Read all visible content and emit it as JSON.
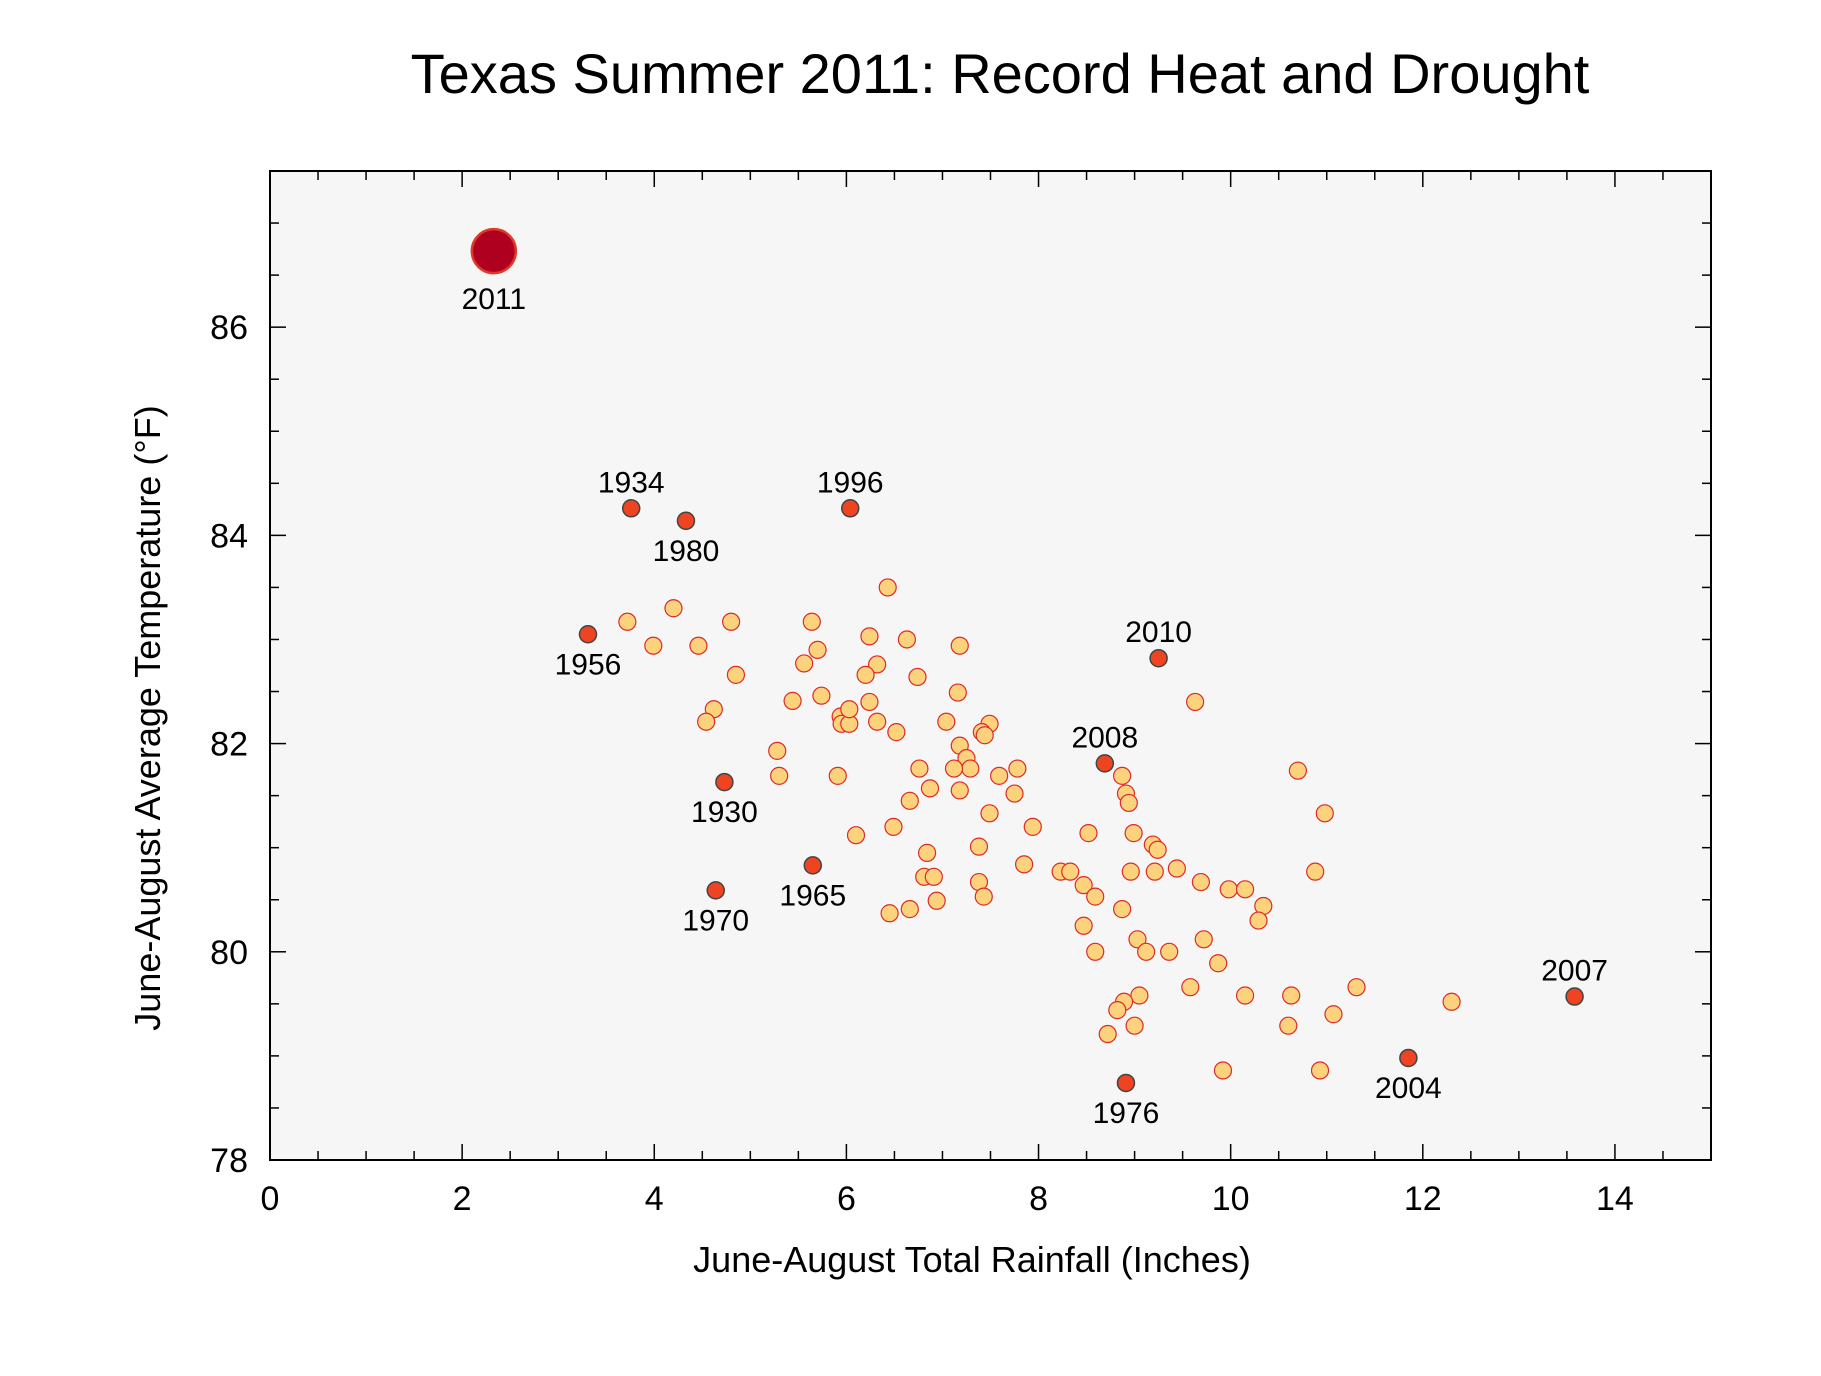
{
  "chart_data": {
    "type": "scatter",
    "title": "Texas Summer 2011:  Record Heat and Drought",
    "xlabel": "June-August Total Rainfall (Inches)",
    "ylabel": "June-August Average Temperature (°F)",
    "xlim": [
      0,
      15
    ],
    "ylim": [
      78,
      87.5
    ],
    "x_ticks": [
      0,
      2,
      4,
      6,
      8,
      10,
      12,
      14
    ],
    "x_tick_labels": [
      "0",
      "2",
      "4",
      "6",
      "8",
      "10",
      "12",
      "14"
    ],
    "y_ticks": [
      78,
      80,
      82,
      84,
      86
    ],
    "y_tick_labels": [
      "78",
      "80",
      "82",
      "84",
      "86"
    ],
    "grid": false,
    "legend": "none",
    "colors": {
      "plot_background": "#f6f6f6",
      "ordinary_fill": "#fdd27c",
      "ordinary_stroke": "#dd2a2a",
      "highlight_fill": "#ee4422",
      "highlight_stroke": "#444444",
      "record_fill": "#b00020",
      "record_stroke": "#e03a2a"
    },
    "highlighted_points": [
      {
        "label": "2011",
        "x": 2.33,
        "y": 86.73,
        "label_pos": "below",
        "record": true
      },
      {
        "label": "1934",
        "x": 3.76,
        "y": 84.26,
        "label_pos": "above"
      },
      {
        "label": "1980",
        "x": 4.33,
        "y": 84.14,
        "label_pos": "below"
      },
      {
        "label": "1996",
        "x": 6.04,
        "y": 84.26,
        "label_pos": "above"
      },
      {
        "label": "1956",
        "x": 3.31,
        "y": 83.05,
        "label_pos": "below"
      },
      {
        "label": "2010",
        "x": 9.25,
        "y": 82.82,
        "label_pos": "above"
      },
      {
        "label": "2008",
        "x": 8.69,
        "y": 81.81,
        "label_pos": "above"
      },
      {
        "label": "1930",
        "x": 4.73,
        "y": 81.63,
        "label_pos": "below"
      },
      {
        "label": "1965",
        "x": 5.65,
        "y": 80.83,
        "label_pos": "below"
      },
      {
        "label": "1970",
        "x": 4.64,
        "y": 80.59,
        "label_pos": "below"
      },
      {
        "label": "2007",
        "x": 13.58,
        "y": 79.57,
        "label_pos": "above"
      },
      {
        "label": "2004",
        "x": 11.85,
        "y": 78.98,
        "label_pos": "below"
      },
      {
        "label": "1976",
        "x": 8.91,
        "y": 78.74,
        "label_pos": "below"
      }
    ],
    "other_points": [
      {
        "x": 3.72,
        "y": 83.17
      },
      {
        "x": 3.99,
        "y": 82.94
      },
      {
        "x": 4.2,
        "y": 83.3
      },
      {
        "x": 4.46,
        "y": 82.94
      },
      {
        "x": 4.8,
        "y": 83.17
      },
      {
        "x": 4.85,
        "y": 82.66
      },
      {
        "x": 4.62,
        "y": 82.33
      },
      {
        "x": 4.54,
        "y": 82.21
      },
      {
        "x": 5.64,
        "y": 83.17
      },
      {
        "x": 5.7,
        "y": 82.9
      },
      {
        "x": 5.56,
        "y": 82.77
      },
      {
        "x": 5.44,
        "y": 82.41
      },
      {
        "x": 5.74,
        "y": 82.46
      },
      {
        "x": 5.28,
        "y": 81.93
      },
      {
        "x": 5.3,
        "y": 81.69
      },
      {
        "x": 5.94,
        "y": 82.26
      },
      {
        "x": 5.95,
        "y": 82.19
      },
      {
        "x": 6.03,
        "y": 82.19
      },
      {
        "x": 6.03,
        "y": 82.33
      },
      {
        "x": 5.91,
        "y": 81.69
      },
      {
        "x": 6.1,
        "y": 81.12
      },
      {
        "x": 6.43,
        "y": 83.5
      },
      {
        "x": 6.24,
        "y": 83.03
      },
      {
        "x": 6.63,
        "y": 83.0
      },
      {
        "x": 6.32,
        "y": 82.76
      },
      {
        "x": 6.2,
        "y": 82.66
      },
      {
        "x": 6.24,
        "y": 82.4
      },
      {
        "x": 6.32,
        "y": 82.21
      },
      {
        "x": 6.52,
        "y": 82.11
      },
      {
        "x": 6.74,
        "y": 82.64
      },
      {
        "x": 6.76,
        "y": 81.76
      },
      {
        "x": 6.66,
        "y": 81.45
      },
      {
        "x": 6.49,
        "y": 81.2
      },
      {
        "x": 6.87,
        "y": 81.57
      },
      {
        "x": 6.84,
        "y": 80.95
      },
      {
        "x": 6.81,
        "y": 80.72
      },
      {
        "x": 6.91,
        "y": 80.72
      },
      {
        "x": 6.94,
        "y": 80.49
      },
      {
        "x": 6.66,
        "y": 80.41
      },
      {
        "x": 6.45,
        "y": 80.37
      },
      {
        "x": 7.18,
        "y": 82.94
      },
      {
        "x": 7.16,
        "y": 82.49
      },
      {
        "x": 7.04,
        "y": 82.21
      },
      {
        "x": 7.49,
        "y": 82.19
      },
      {
        "x": 7.41,
        "y": 82.11
      },
      {
        "x": 7.44,
        "y": 82.08
      },
      {
        "x": 7.18,
        "y": 81.98
      },
      {
        "x": 7.25,
        "y": 81.86
      },
      {
        "x": 7.29,
        "y": 81.76
      },
      {
        "x": 7.12,
        "y": 81.76
      },
      {
        "x": 7.18,
        "y": 81.55
      },
      {
        "x": 7.59,
        "y": 81.69
      },
      {
        "x": 7.78,
        "y": 81.76
      },
      {
        "x": 7.75,
        "y": 81.52
      },
      {
        "x": 7.49,
        "y": 81.33
      },
      {
        "x": 7.94,
        "y": 81.2
      },
      {
        "x": 7.38,
        "y": 81.01
      },
      {
        "x": 7.85,
        "y": 80.84
      },
      {
        "x": 7.38,
        "y": 80.67
      },
      {
        "x": 7.43,
        "y": 80.53
      },
      {
        "x": 8.23,
        "y": 80.77
      },
      {
        "x": 8.33,
        "y": 80.77
      },
      {
        "x": 8.52,
        "y": 81.14
      },
      {
        "x": 8.47,
        "y": 80.64
      },
      {
        "x": 8.59,
        "y": 80.53
      },
      {
        "x": 8.47,
        "y": 80.25
      },
      {
        "x": 8.59,
        "y": 80.0
      },
      {
        "x": 8.87,
        "y": 81.69
      },
      {
        "x": 8.91,
        "y": 81.52
      },
      {
        "x": 8.94,
        "y": 81.43
      },
      {
        "x": 8.99,
        "y": 81.14
      },
      {
        "x": 9.19,
        "y": 81.03
      },
      {
        "x": 9.24,
        "y": 80.98
      },
      {
        "x": 8.96,
        "y": 80.77
      },
      {
        "x": 9.21,
        "y": 80.77
      },
      {
        "x": 9.44,
        "y": 80.8
      },
      {
        "x": 8.87,
        "y": 80.41
      },
      {
        "x": 9.03,
        "y": 80.12
      },
      {
        "x": 9.12,
        "y": 80.0
      },
      {
        "x": 9.36,
        "y": 80.0
      },
      {
        "x": 9.05,
        "y": 79.58
      },
      {
        "x": 8.89,
        "y": 79.52
      },
      {
        "x": 8.82,
        "y": 79.44
      },
      {
        "x": 9.0,
        "y": 79.29
      },
      {
        "x": 8.72,
        "y": 79.21
      },
      {
        "x": 9.63,
        "y": 82.4
      },
      {
        "x": 9.69,
        "y": 80.67
      },
      {
        "x": 9.72,
        "y": 80.12
      },
      {
        "x": 9.87,
        "y": 79.89
      },
      {
        "x": 9.58,
        "y": 79.66
      },
      {
        "x": 9.98,
        "y": 80.6
      },
      {
        "x": 10.15,
        "y": 80.6
      },
      {
        "x": 10.34,
        "y": 80.44
      },
      {
        "x": 10.29,
        "y": 80.3
      },
      {
        "x": 10.15,
        "y": 79.58
      },
      {
        "x": 9.92,
        "y": 78.86
      },
      {
        "x": 10.7,
        "y": 81.74
      },
      {
        "x": 10.98,
        "y": 81.33
      },
      {
        "x": 10.88,
        "y": 80.77
      },
      {
        "x": 10.63,
        "y": 79.58
      },
      {
        "x": 10.6,
        "y": 79.29
      },
      {
        "x": 11.07,
        "y": 79.4
      },
      {
        "x": 11.31,
        "y": 79.66
      },
      {
        "x": 10.93,
        "y": 78.86
      },
      {
        "x": 12.3,
        "y": 79.52
      }
    ]
  }
}
